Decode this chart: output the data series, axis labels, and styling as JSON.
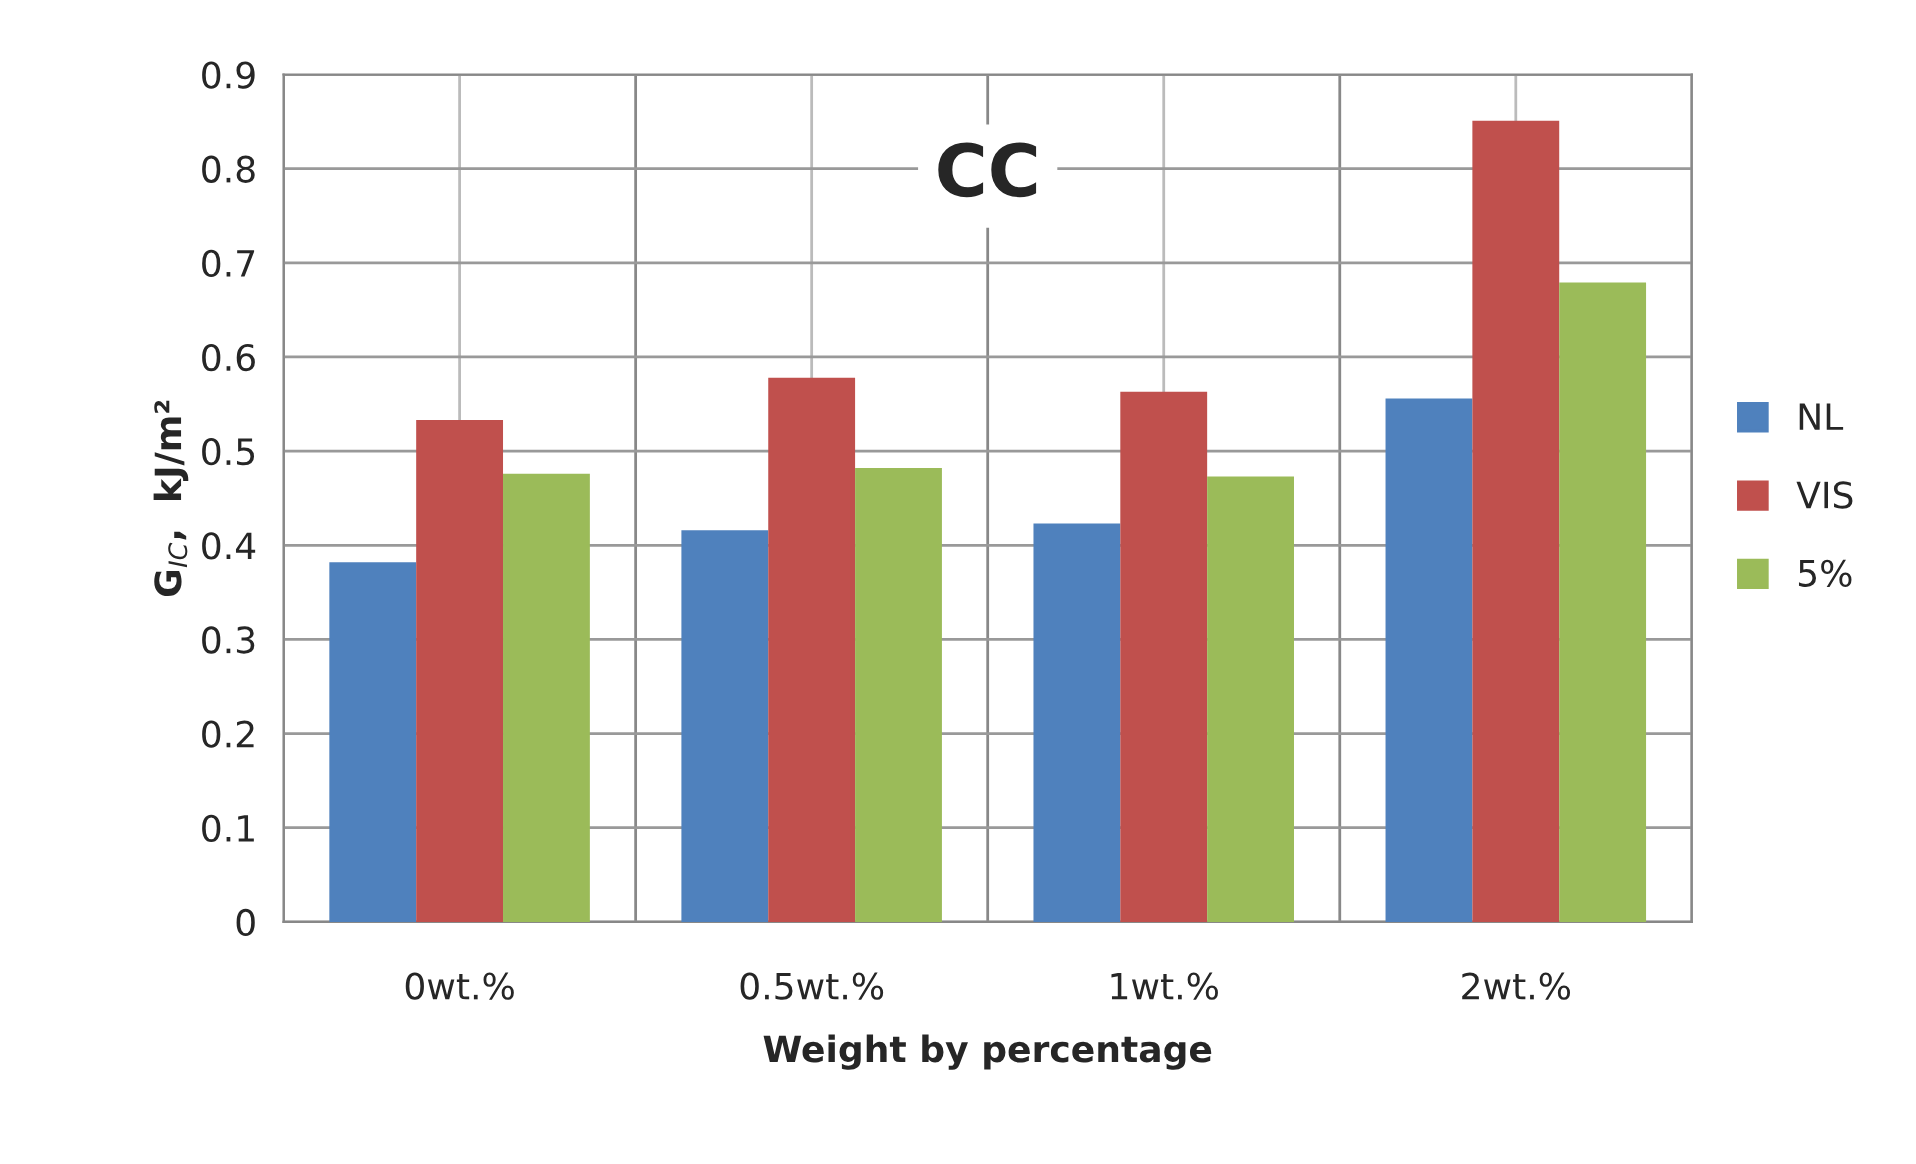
{
  "chart_data": {
    "type": "bar",
    "title": "CC",
    "xlabel": "Weight by percentage",
    "ylabel": "G$_{IC}$,  kJ/m²",
    "categories": [
      "0wt.%",
      "0.5wt.%",
      "1wt.%",
      "2wt.%"
    ],
    "series": [
      {
        "name": "NL",
        "color": "#4f81bd",
        "values": [
          0.382,
          0.416,
          0.423,
          0.556
        ]
      },
      {
        "name": "VIS",
        "color": "#c0504d",
        "values": [
          0.533,
          0.578,
          0.563,
          0.851
        ]
      },
      {
        "name": "5%",
        "color": "#9bbb59",
        "values": [
          0.476,
          0.482,
          0.473,
          0.679
        ]
      }
    ],
    "ylim": [
      0,
      0.9
    ],
    "yticks": [
      0,
      0.1,
      0.2,
      0.3,
      0.4,
      0.5,
      0.6,
      0.7,
      0.8,
      0.9
    ],
    "grid": true,
    "legend": "right"
  }
}
